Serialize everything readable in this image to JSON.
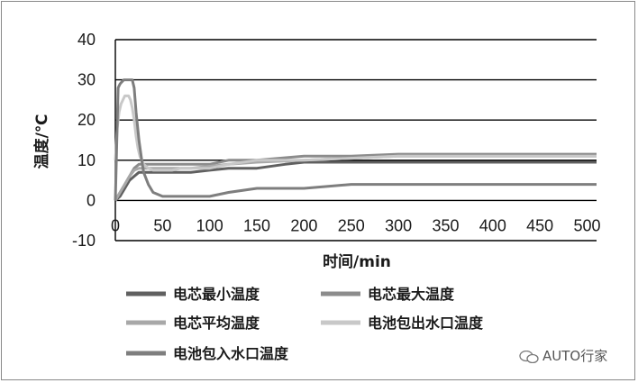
{
  "chart_data": {
    "type": "line",
    "title": "",
    "xlabel": "时间/min",
    "ylabel": "温度/℃",
    "xlim": [
      0,
      510
    ],
    "ylim": [
      -10,
      40
    ],
    "x_ticks": [
      0,
      50,
      100,
      150,
      200,
      250,
      300,
      350,
      400,
      450,
      500
    ],
    "y_ticks": [
      -10,
      0,
      10,
      20,
      30,
      40
    ],
    "grid": "horizontal",
    "legend_position": "bottom",
    "series": [
      {
        "name": "电芯最小温度",
        "color": "#606060",
        "x": [
          0,
          5,
          10,
          15,
          20,
          25,
          30,
          40,
          60,
          80,
          100,
          120,
          150,
          180,
          200,
          250,
          300,
          350,
          380,
          400,
          430,
          450,
          470,
          490,
          510
        ],
        "y": [
          0,
          1,
          3,
          5,
          6,
          7,
          7,
          7,
          7,
          7,
          7.5,
          8,
          8,
          9,
          9.5,
          9.5,
          9.5,
          9.5,
          9.5,
          9.5,
          9.5,
          9.5,
          9.5,
          9.5,
          9.5
        ]
      },
      {
        "name": "电芯最大温度",
        "color": "#8c8c8c",
        "x": [
          0,
          5,
          10,
          15,
          20,
          25,
          30,
          40,
          60,
          80,
          100,
          120,
          150,
          200,
          250,
          300,
          350,
          400,
          450,
          510
        ],
        "y": [
          0,
          2,
          4,
          6,
          8,
          9,
          9,
          9,
          9,
          9,
          9,
          10,
          10,
          11,
          11,
          11.5,
          11.5,
          11.5,
          11.5,
          11.5
        ]
      },
      {
        "name": "电芯平均温度",
        "color": "#a8a8a8",
        "x": [
          0,
          5,
          10,
          15,
          20,
          25,
          30,
          40,
          60,
          80,
          100,
          120,
          150,
          200,
          250,
          300,
          350,
          400,
          450,
          510
        ],
        "y": [
          0,
          2,
          4,
          6,
          7.5,
          8,
          8,
          8,
          8,
          8,
          8.5,
          9,
          9.5,
          10,
          10.5,
          11,
          11,
          11,
          11,
          11
        ]
      },
      {
        "name": "电池包出水口温度",
        "color": "#c8c8c8",
        "x": [
          0,
          2,
          4,
          6,
          8,
          10,
          12,
          14,
          16,
          18,
          20,
          22,
          24,
          26,
          28,
          30,
          35,
          40,
          50,
          60,
          70,
          80,
          100,
          120,
          150,
          200,
          250,
          300,
          350,
          400,
          450,
          510
        ],
        "y": [
          10,
          18,
          22,
          24,
          25,
          26,
          26,
          26,
          25,
          23,
          20,
          16,
          13,
          11,
          10,
          9,
          8,
          7.5,
          7.5,
          7.5,
          8,
          8,
          8,
          9,
          10,
          10,
          10.5,
          11,
          11,
          11,
          11,
          11
        ]
      },
      {
        "name": "电池包入水口温度",
        "color": "#7e7e7e",
        "x": [
          0,
          3,
          5,
          7,
          9,
          12,
          15,
          18,
          20,
          22,
          25,
          28,
          30,
          35,
          40,
          50,
          60,
          80,
          100,
          120,
          150,
          200,
          250,
          300,
          350,
          400,
          450,
          510
        ],
        "y": [
          0,
          28,
          29,
          29.5,
          30,
          30,
          30,
          30,
          28,
          22,
          15,
          10,
          7,
          4,
          2,
          1,
          1,
          1,
          1,
          2,
          3,
          3,
          4,
          4,
          4,
          4,
          4,
          4
        ]
      }
    ]
  },
  "watermark": {
    "text": "AUTO行家",
    "icon": "wechat-icon"
  }
}
